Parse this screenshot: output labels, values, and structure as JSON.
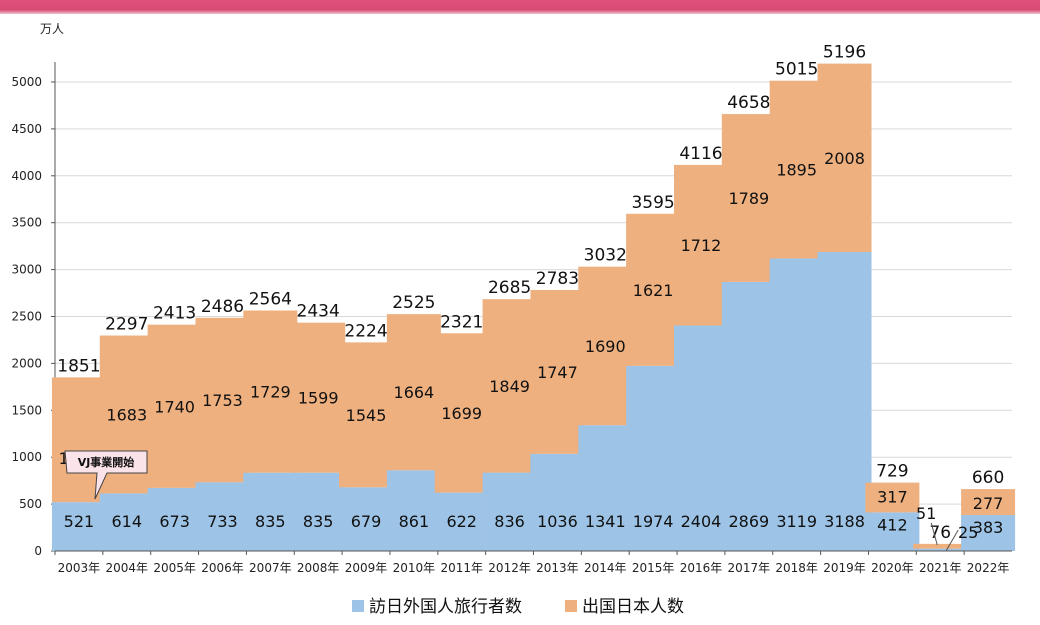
{
  "header": {
    "accent_color": "#d64b73"
  },
  "chart_data": {
    "type": "bar",
    "stacked": true,
    "unit": "万人",
    "categories": [
      "2003年",
      "2004年",
      "2005年",
      "2006年",
      "2007年",
      "2008年",
      "2009年",
      "2010年",
      "2011年",
      "2012年",
      "2013年",
      "2014年",
      "2015年",
      "2016年",
      "2017年",
      "2018年",
      "2019年",
      "2020年",
      "2021年",
      "2022年"
    ],
    "series": [
      {
        "name": "訪日外国人旅行者数",
        "color": "#9dc3e6",
        "values": [
          521,
          614,
          673,
          733,
          835,
          835,
          679,
          861,
          622,
          836,
          1036,
          1341,
          1974,
          2404,
          2869,
          3119,
          3188,
          412,
          25,
          383
        ]
      },
      {
        "name": "出国日本人数",
        "color": "#eeb07f",
        "values": [
          1330,
          1683,
          1740,
          1753,
          1729,
          1599,
          1545,
          1664,
          1699,
          1849,
          1747,
          1690,
          1621,
          1712,
          1789,
          1895,
          2008,
          317,
          51,
          277
        ]
      }
    ],
    "totals": [
      1851,
      2297,
      2413,
      2486,
      2564,
      2434,
      2224,
      2525,
      2321,
      2685,
      2783,
      3032,
      3595,
      4116,
      4658,
      5015,
      5196,
      729,
      76,
      660
    ],
    "y_ticks": [
      0,
      500,
      1000,
      1500,
      2000,
      2500,
      3000,
      3500,
      4000,
      4500,
      5000
    ],
    "ylim": [
      0,
      5400
    ],
    "grid": true,
    "legend_position": "bottom",
    "annotation": {
      "text": "VJ事業開始",
      "category_index": 0
    }
  }
}
